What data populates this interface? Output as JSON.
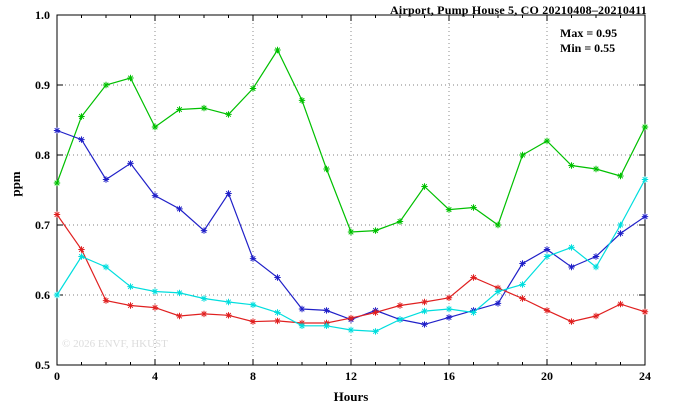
{
  "annotation": {
    "max_label": "Max = 0.95",
    "min_label": "Min = 0.55"
  },
  "watermark": "© 2026 ENVF, HKUST",
  "chart_data": {
    "type": "line",
    "title": "Airport, Pump House 5, CO 20210408–20210411",
    "xlabel": "Hours",
    "ylabel": "ppm",
    "xlim": [
      0,
      24
    ],
    "ylim": [
      0.5,
      1.0
    ],
    "xticks": [
      "0",
      "4",
      "8",
      "12",
      "16",
      "20",
      "24"
    ],
    "yticks": [
      "0.5",
      "0.6",
      "0.7",
      "0.8",
      "0.9",
      "1.0"
    ],
    "x_minor_step": 1,
    "grid": true,
    "legend_position": "none",
    "marker": "asterisk",
    "max_value": 0.95,
    "min_value": 0.55,
    "x": [
      0,
      1,
      2,
      3,
      4,
      5,
      6,
      7,
      8,
      9,
      10,
      11,
      12,
      13,
      14,
      15,
      16,
      17,
      18,
      19,
      20,
      21,
      22,
      23,
      24
    ],
    "series": [
      {
        "name": "green",
        "color": "#00c000",
        "values": [
          0.76,
          0.855,
          0.9,
          0.91,
          0.84,
          0.865,
          0.867,
          0.858,
          0.895,
          0.95,
          0.878,
          0.78,
          0.69,
          0.692,
          0.705,
          0.755,
          0.722,
          0.725,
          0.7,
          0.8,
          0.82,
          0.785,
          0.78,
          0.77,
          0.84
        ]
      },
      {
        "name": "blue",
        "color": "#2020c8",
        "values": [
          0.835,
          0.822,
          0.765,
          0.788,
          0.742,
          0.723,
          0.692,
          0.745,
          0.652,
          0.625,
          0.58,
          0.578,
          0.565,
          0.578,
          0.565,
          0.558,
          0.568,
          0.578,
          0.588,
          0.645,
          0.665,
          0.64,
          0.655,
          0.688,
          0.712
        ]
      },
      {
        "name": "red",
        "color": "#e02020",
        "values": [
          0.715,
          0.665,
          0.592,
          0.585,
          0.582,
          0.57,
          0.573,
          0.571,
          0.562,
          0.563,
          0.56,
          0.56,
          0.567,
          0.575,
          0.585,
          0.59,
          0.596,
          0.625,
          0.61,
          0.595,
          0.578,
          0.562,
          0.57,
          0.587,
          0.576
        ]
      },
      {
        "name": "cyan",
        "color": "#00dede",
        "values": [
          0.6,
          0.655,
          0.64,
          0.612,
          0.605,
          0.603,
          0.595,
          0.59,
          0.586,
          0.575,
          0.556,
          0.556,
          0.55,
          0.548,
          0.565,
          0.577,
          0.58,
          0.575,
          0.605,
          0.615,
          0.655,
          0.668,
          0.64,
          0.7,
          0.765
        ]
      }
    ]
  }
}
